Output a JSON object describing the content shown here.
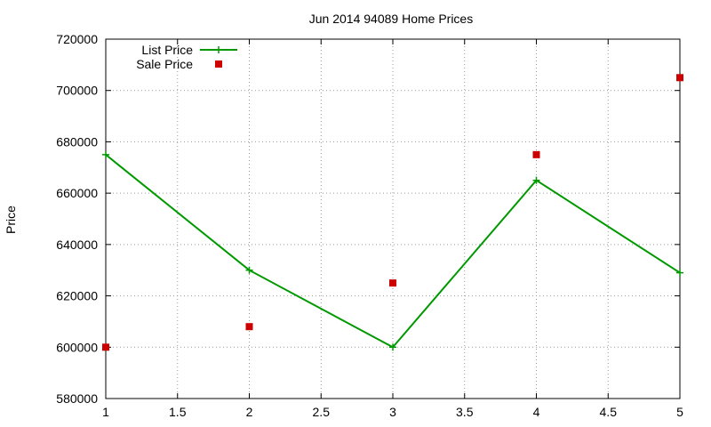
{
  "chart_data": {
    "type": "line",
    "title": "Jun 2014 94089 Home Prices",
    "xlabel": "",
    "ylabel": "Price",
    "xlim": [
      1,
      5
    ],
    "ylim": [
      580000,
      720000
    ],
    "x_ticks": [
      "1",
      "1.5",
      "2",
      "2.5",
      "3",
      "3.5",
      "4",
      "4.5",
      "5"
    ],
    "y_ticks": [
      "580000",
      "600000",
      "620000",
      "640000",
      "660000",
      "680000",
      "700000",
      "720000"
    ],
    "grid": true,
    "legend_position": "top-left",
    "series": [
      {
        "name": "List Price",
        "style": "line+points",
        "color": "#009900",
        "x": [
          1,
          2,
          3,
          4,
          5
        ],
        "y": [
          675000,
          630000,
          600000,
          665000,
          629000
        ]
      },
      {
        "name": "Sale Price",
        "style": "points",
        "color": "#cc0000",
        "x": [
          1,
          2,
          3,
          4,
          5
        ],
        "y": [
          600000,
          608000,
          625000,
          675000,
          705000
        ]
      }
    ]
  }
}
